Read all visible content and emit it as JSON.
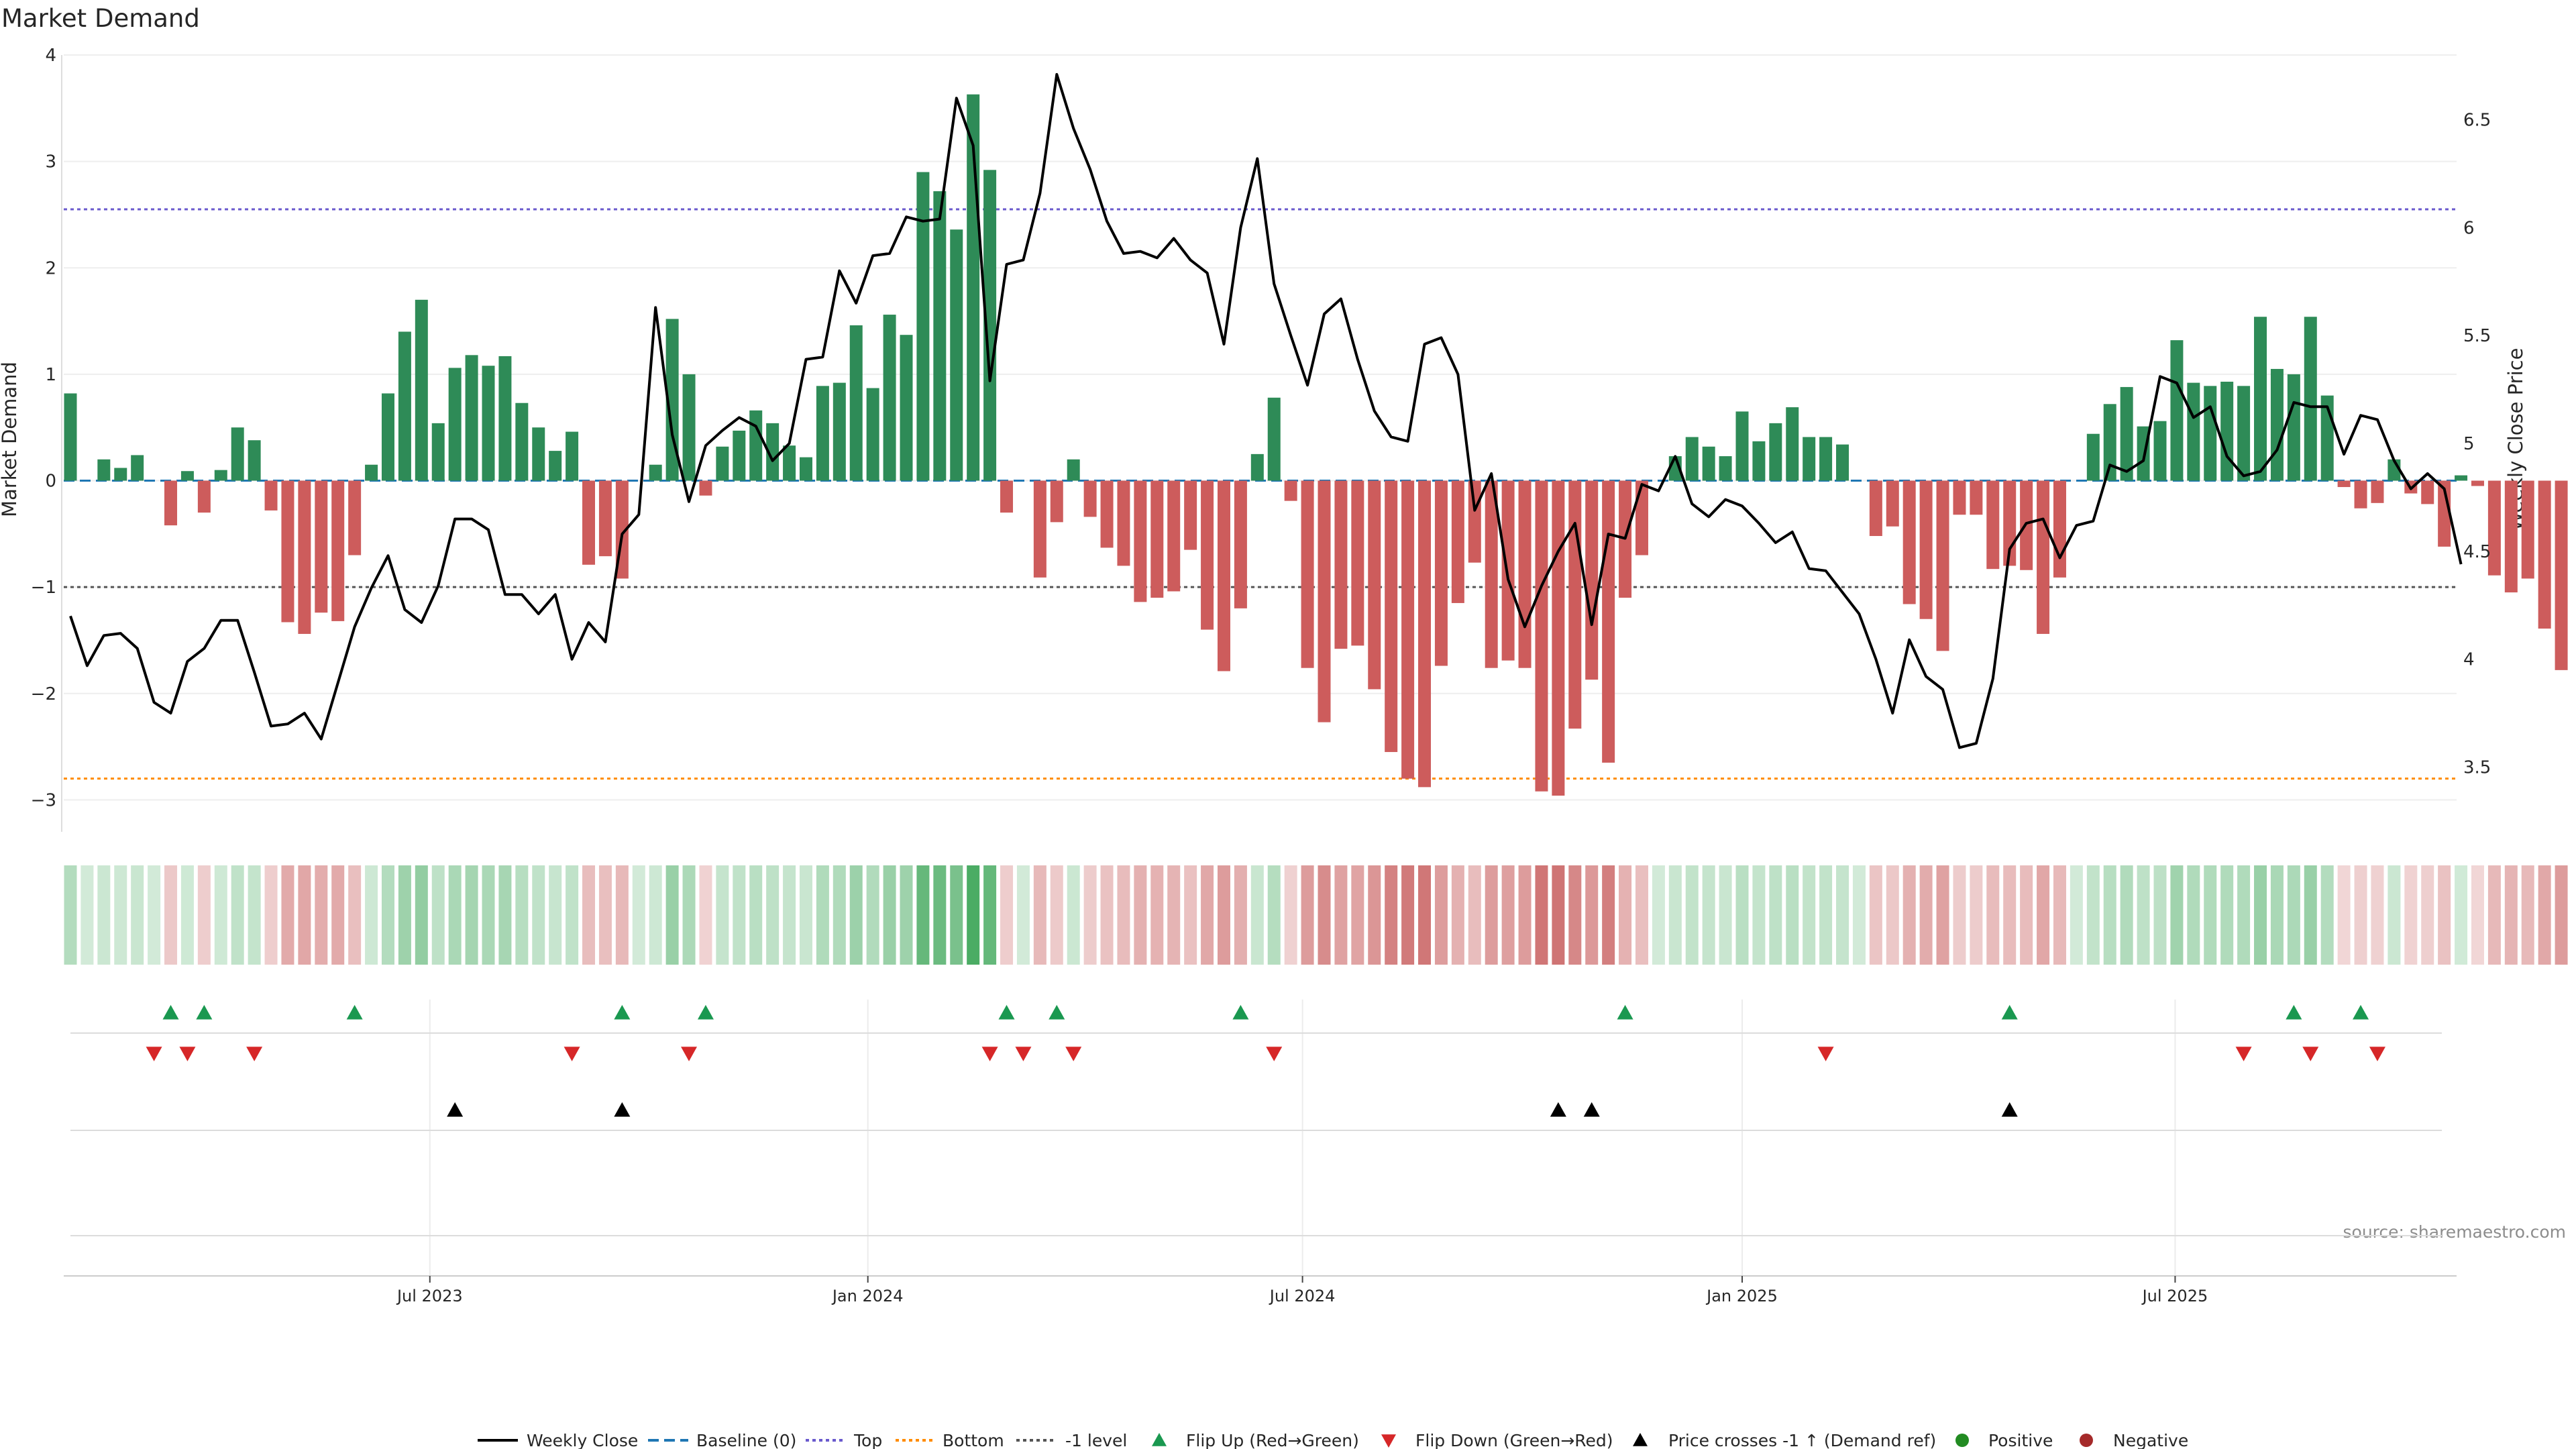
{
  "colors": {
    "positive_bar": "#2e8b57",
    "negative_bar": "#cd5c5c",
    "price_line": "#000000",
    "baseline": "#1f77b4",
    "top_line": "#6a5acd",
    "bottom_line": "#ff8c00",
    "minus1_line": "#555555",
    "flip_up": "#1a9850",
    "flip_down": "#d62728",
    "cross": "#000000",
    "positive_dot": "#228b22",
    "negative_dot": "#a52a2a"
  },
  "chart_data": {
    "type": "bar",
    "title": "Market Demand",
    "ylabel": "Market Demand",
    "y2label": "Weekly Close Price",
    "ylim": [
      -3.3,
      4.0
    ],
    "y2lim": [
      3.2,
      6.8
    ],
    "yticks": [
      4,
      3,
      2,
      1,
      0,
      -1,
      -2,
      -3
    ],
    "y2ticks": [
      6.5,
      6,
      5.5,
      5,
      4.5,
      4,
      3.5
    ],
    "ytick_labels": [
      "4",
      "3",
      "2",
      "1",
      "0",
      "−1",
      "−2",
      "−3"
    ],
    "y2tick_labels": [
      "6.5",
      "6",
      "5.5",
      "5",
      "4.5",
      "4",
      "3.5"
    ],
    "xticks": [
      {
        "label": "Jul 2023",
        "index": 21.5
      },
      {
        "label": "Jan 2024",
        "index": 47.7
      },
      {
        "label": "Jul 2024",
        "index": 73.7
      },
      {
        "label": "Jan 2025",
        "index": 100.0
      },
      {
        "label": "Jul 2025",
        "index": 125.9
      }
    ],
    "reference_lines": {
      "baseline": 0,
      "top": 2.55,
      "bottom": -2.8,
      "minus_one": -1
    },
    "demand": [
      0.82,
      0.0,
      0.2,
      0.12,
      0.24,
      0.0,
      -0.42,
      0.09,
      -0.3,
      0.1,
      0.5,
      0.38,
      -0.28,
      -1.33,
      -1.44,
      -1.24,
      -1.32,
      -0.7,
      0.15,
      0.82,
      1.4,
      1.7,
      0.54,
      1.06,
      1.18,
      1.08,
      1.17,
      0.73,
      0.5,
      0.28,
      0.46,
      -0.79,
      -0.71,
      -0.92,
      0.0,
      0.15,
      1.52,
      1.0,
      -0.14,
      0.32,
      0.47,
      0.66,
      0.54,
      0.33,
      0.22,
      0.89,
      0.92,
      1.46,
      0.87,
      1.56,
      1.37,
      2.9,
      2.72,
      2.36,
      3.63,
      2.92,
      -0.3,
      0.0,
      -0.91,
      -0.39,
      0.2,
      -0.34,
      -0.63,
      -0.8,
      -1.14,
      -1.1,
      -1.04,
      -0.65,
      -1.4,
      -1.79,
      -1.2,
      0.25,
      0.78,
      -0.19,
      -1.76,
      -2.27,
      -1.58,
      -1.55,
      -1.96,
      -2.55,
      -2.8,
      -2.88,
      -1.74,
      -1.15,
      -0.77,
      -1.76,
      -1.69,
      -1.76,
      -2.92,
      -2.96,
      -2.33,
      -1.87,
      -2.65,
      -1.1,
      -0.7,
      0.0,
      0.23,
      0.41,
      0.32,
      0.23,
      0.65,
      0.37,
      0.54,
      0.69,
      0.41,
      0.41,
      0.34,
      0.0,
      -0.52,
      -0.43,
      -1.16,
      -1.3,
      -1.6,
      -0.32,
      -0.32,
      -0.83,
      -0.8,
      -0.84,
      -1.44,
      -0.91,
      0.0,
      0.44,
      0.72,
      0.88,
      0.51,
      0.56,
      1.32,
      0.92,
      0.89,
      0.93,
      0.89,
      1.54,
      1.05,
      1.0,
      1.54,
      0.8,
      -0.06,
      -0.26,
      -0.21,
      0.2,
      -0.12,
      -0.22,
      -0.62,
      0.05,
      -0.05,
      -0.89,
      -1.05,
      -0.92,
      -1.39,
      -1.78
    ],
    "price": [
      4.2,
      3.97,
      4.11,
      4.12,
      4.05,
      3.8,
      3.75,
      3.99,
      4.05,
      4.18,
      4.18,
      3.94,
      3.69,
      3.7,
      3.75,
      3.63,
      3.89,
      4.15,
      4.33,
      4.48,
      4.23,
      4.17,
      4.34,
      4.65,
      4.65,
      4.6,
      4.3,
      4.3,
      4.21,
      4.3,
      4.0,
      4.17,
      4.08,
      4.58,
      4.67,
      5.63,
      5.04,
      4.73,
      4.99,
      5.06,
      5.12,
      5.08,
      4.92,
      5.0,
      5.39,
      5.4,
      5.8,
      5.65,
      5.87,
      5.88,
      6.05,
      6.03,
      6.04,
      6.6,
      6.38,
      5.29,
      5.83,
      5.85,
      6.16,
      6.71,
      6.46,
      6.27,
      6.03,
      5.88,
      5.89,
      5.86,
      5.95,
      5.85,
      5.79,
      5.46,
      6.0,
      6.32,
      5.74,
      5.5,
      5.27,
      5.6,
      5.67,
      5.39,
      5.15,
      5.03,
      5.01,
      5.46,
      5.49,
      5.32,
      4.69,
      4.86,
      4.37,
      4.15,
      4.34,
      4.5,
      4.63,
      4.16,
      4.58,
      4.56,
      4.81,
      4.78,
      4.94,
      4.72,
      4.66,
      4.74,
      4.71,
      4.63,
      4.54,
      4.59,
      4.42,
      4.41,
      4.31,
      4.21,
      4.0,
      3.75,
      4.09,
      3.92,
      3.86,
      3.59,
      3.61,
      3.91,
      4.51,
      4.63,
      4.65,
      4.47,
      4.62,
      4.64,
      4.9,
      4.87,
      4.92,
      5.31,
      5.28,
      5.12,
      5.17,
      4.94,
      4.85,
      4.87,
      4.97,
      5.19,
      5.17,
      5.17,
      4.95,
      5.13,
      5.11,
      4.92,
      4.79,
      4.86,
      4.79,
      4.44
    ],
    "heat_strip_note": "cell shade follows demand value",
    "flip_up_indices": [
      6,
      8,
      17,
      33,
      38,
      56,
      59,
      70,
      93,
      116,
      133,
      137
    ],
    "flip_down_indices": [
      5,
      7,
      11,
      30,
      37,
      55,
      57,
      60,
      72,
      105,
      130,
      134,
      138
    ],
    "price_cross_indices": [
      23,
      33,
      89,
      91,
      116
    ],
    "legend": [
      "Weekly Close",
      "Baseline (0)",
      "Top",
      "Bottom",
      "-1 level",
      "Flip Up (Red→Green)",
      "Flip Down (Green→Red)",
      "Price crosses -1 ↑ (Demand ref)",
      "Positive",
      "Negative"
    ]
  },
  "source_text": "source: sharemaestro.com"
}
